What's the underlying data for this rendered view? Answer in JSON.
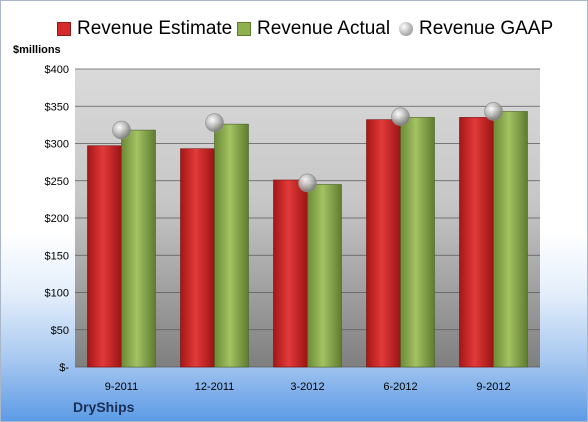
{
  "legend": {
    "estimate": "Revenue Estimate",
    "actual": "Revenue Actual",
    "gaap": "Revenue GAAP"
  },
  "unit_label": "$millions",
  "company": "DryShips",
  "colors": {
    "estimate": "#d42a2a",
    "actual": "#8fb04f",
    "gaap": "#b8b8b8"
  },
  "chart_data": {
    "type": "bar",
    "categories": [
      "9-2011",
      "12-2011",
      "3-2012",
      "6-2012",
      "9-2012"
    ],
    "series": [
      {
        "name": "Revenue Estimate",
        "values": [
          297,
          293,
          251,
          332,
          335
        ]
      },
      {
        "name": "Revenue Actual",
        "values": [
          318,
          326,
          245,
          335,
          343
        ]
      },
      {
        "name": "Revenue GAAP",
        "values": [
          318,
          328,
          247,
          336,
          343
        ]
      }
    ],
    "ylim": [
      0,
      400
    ],
    "yticks": [
      0,
      50,
      100,
      150,
      200,
      250,
      300,
      350,
      400
    ],
    "ytick_labels": [
      "$-",
      "$50",
      "$100",
      "$150",
      "$200",
      "$250",
      "$300",
      "$350",
      "$400"
    ],
    "ylabel": "$millions",
    "grid": true,
    "legend_position": "top"
  }
}
